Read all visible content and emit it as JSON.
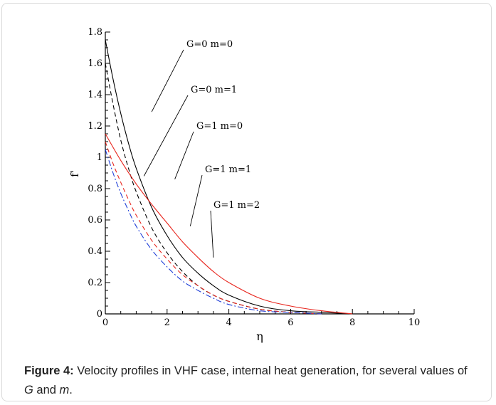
{
  "chart_data": {
    "type": "line",
    "xlabel": "η",
    "ylabel": "f'",
    "xlim": [
      0,
      10
    ],
    "ylim": [
      0,
      1.8
    ],
    "xticks": [
      0,
      2,
      4,
      6,
      8,
      10
    ],
    "xtick_labels": [
      "0",
      "2",
      "4",
      "6",
      "8",
      "10"
    ],
    "yticks": [
      0,
      0.2,
      0.4,
      0.6,
      0.8,
      1.0,
      1.2,
      1.4,
      1.6,
      1.8
    ],
    "ytick_labels": [
      "0",
      "0.2",
      "0.4",
      "0.6",
      "0.8",
      "1",
      "1.2",
      "1.4",
      "1.6",
      "1.8"
    ],
    "grid": false,
    "series": [
      {
        "name": "G=0 m=0",
        "color": "#000000",
        "dash": "solid",
        "x": [
          0,
          0.25,
          0.5,
          0.75,
          1,
          1.5,
          2,
          2.5,
          3,
          3.5,
          4,
          5,
          6,
          7,
          8
        ],
        "y": [
          1.75,
          1.5,
          1.28,
          1.09,
          0.93,
          0.68,
          0.5,
          0.36,
          0.26,
          0.18,
          0.12,
          0.05,
          0.02,
          0.01,
          0.0
        ]
      },
      {
        "name": "G=0 m=1",
        "color": "#000000",
        "dash": "dashed",
        "x": [
          0,
          0.25,
          0.5,
          0.75,
          1,
          1.5,
          2,
          2.5,
          3,
          3.5,
          4,
          5,
          6,
          7
        ],
        "y": [
          1.6,
          1.34,
          1.11,
          0.93,
          0.78,
          0.55,
          0.39,
          0.27,
          0.18,
          0.12,
          0.08,
          0.03,
          0.01,
          0.0
        ]
      },
      {
        "name": "G=1 m=0",
        "color": "#e8241c",
        "dash": "solid",
        "x": [
          0,
          0.5,
          1,
          1.5,
          2,
          2.5,
          3,
          3.5,
          4,
          5,
          6,
          7,
          8
        ],
        "y": [
          1.15,
          0.98,
          0.83,
          0.7,
          0.58,
          0.46,
          0.36,
          0.27,
          0.2,
          0.1,
          0.05,
          0.02,
          0.0
        ]
      },
      {
        "name": "G=1 m=1",
        "color": "#e8241c",
        "dash": "dashed",
        "x": [
          0,
          0.25,
          0.5,
          0.75,
          1,
          1.5,
          2,
          2.5,
          3,
          3.5,
          4,
          5,
          6,
          7
        ],
        "y": [
          1.1,
          0.96,
          0.84,
          0.73,
          0.63,
          0.47,
          0.35,
          0.25,
          0.18,
          0.12,
          0.08,
          0.03,
          0.01,
          0.0
        ]
      },
      {
        "name": "G=1 m=2",
        "color": "#1f3fd8",
        "dash": "dashdot",
        "x": [
          0,
          0.25,
          0.5,
          0.75,
          1,
          1.5,
          2,
          2.5,
          3,
          3.5,
          4,
          5,
          6,
          7
        ],
        "y": [
          1.05,
          0.9,
          0.77,
          0.66,
          0.56,
          0.41,
          0.3,
          0.21,
          0.15,
          0.1,
          0.06,
          0.02,
          0.01,
          0.0
        ]
      }
    ],
    "annotations": [
      {
        "text": "G=0 m=0",
        "target": [
          1.5,
          1.29
        ]
      },
      {
        "text": "G=0 m=1",
        "target": [
          1.25,
          0.88
        ]
      },
      {
        "text": "G=1 m=0",
        "target": [
          2.25,
          0.86
        ]
      },
      {
        "text": "G=1 m=1",
        "target": [
          2.75,
          0.56
        ]
      },
      {
        "text": "G=1 m=2",
        "target": [
          3.5,
          0.36
        ]
      }
    ]
  },
  "caption": {
    "label": "Figure 4:",
    "text_before": " Velocity profiles in VHF case, internal heat generation, for several values of ",
    "var1": "G",
    "mid": " and ",
    "var2": "m",
    "end": "."
  }
}
